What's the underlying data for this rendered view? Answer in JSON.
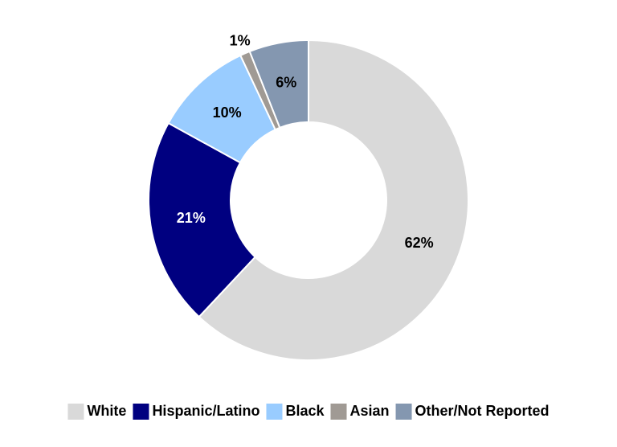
{
  "chart_data": {
    "type": "donut",
    "categories": [
      "White",
      "Hispanic/Latino",
      "Black",
      "Asian",
      "Other/Not Reported"
    ],
    "values": [
      62,
      21,
      10,
      1,
      6
    ],
    "value_labels": [
      "62%",
      "21%",
      "10%",
      "1%",
      "6%"
    ],
    "colors": [
      "#d9d9d9",
      "#000080",
      "#99ccff",
      "#a09a94",
      "#8497b0"
    ],
    "legend": "bottom"
  }
}
